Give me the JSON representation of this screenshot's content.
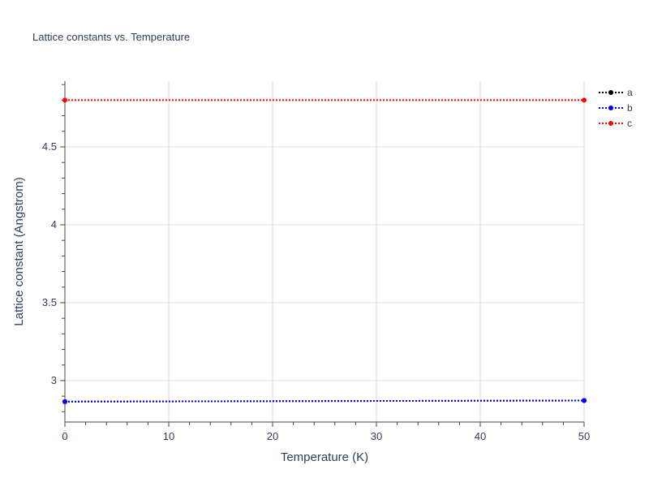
{
  "chart_data": {
    "type": "line",
    "title": "Lattice constants vs. Temperature",
    "xlabel": "Temperature (K)",
    "ylabel": "Lattice constant (Angstrom)",
    "xlim": [
      0,
      50
    ],
    "ylim": [
      2.734,
      4.922
    ],
    "xticks": [
      0,
      10,
      20,
      30,
      40,
      50
    ],
    "yticks": [
      3,
      3.5,
      4,
      4.5
    ],
    "ytick_labels": [
      "3",
      "3.5",
      "4",
      "4.5"
    ],
    "grid": true,
    "legend_placement": "top-right",
    "series": [
      {
        "name": "a",
        "color": "#000000",
        "x": [
          0,
          50
        ],
        "y": [
          2.865,
          2.872
        ]
      },
      {
        "name": "b",
        "color": "#0000ff",
        "x": [
          0,
          50
        ],
        "y": [
          2.865,
          2.872
        ]
      },
      {
        "name": "c",
        "color": "#ff0000",
        "x": [
          0,
          50
        ],
        "y": [
          4.8,
          4.8
        ]
      }
    ]
  }
}
